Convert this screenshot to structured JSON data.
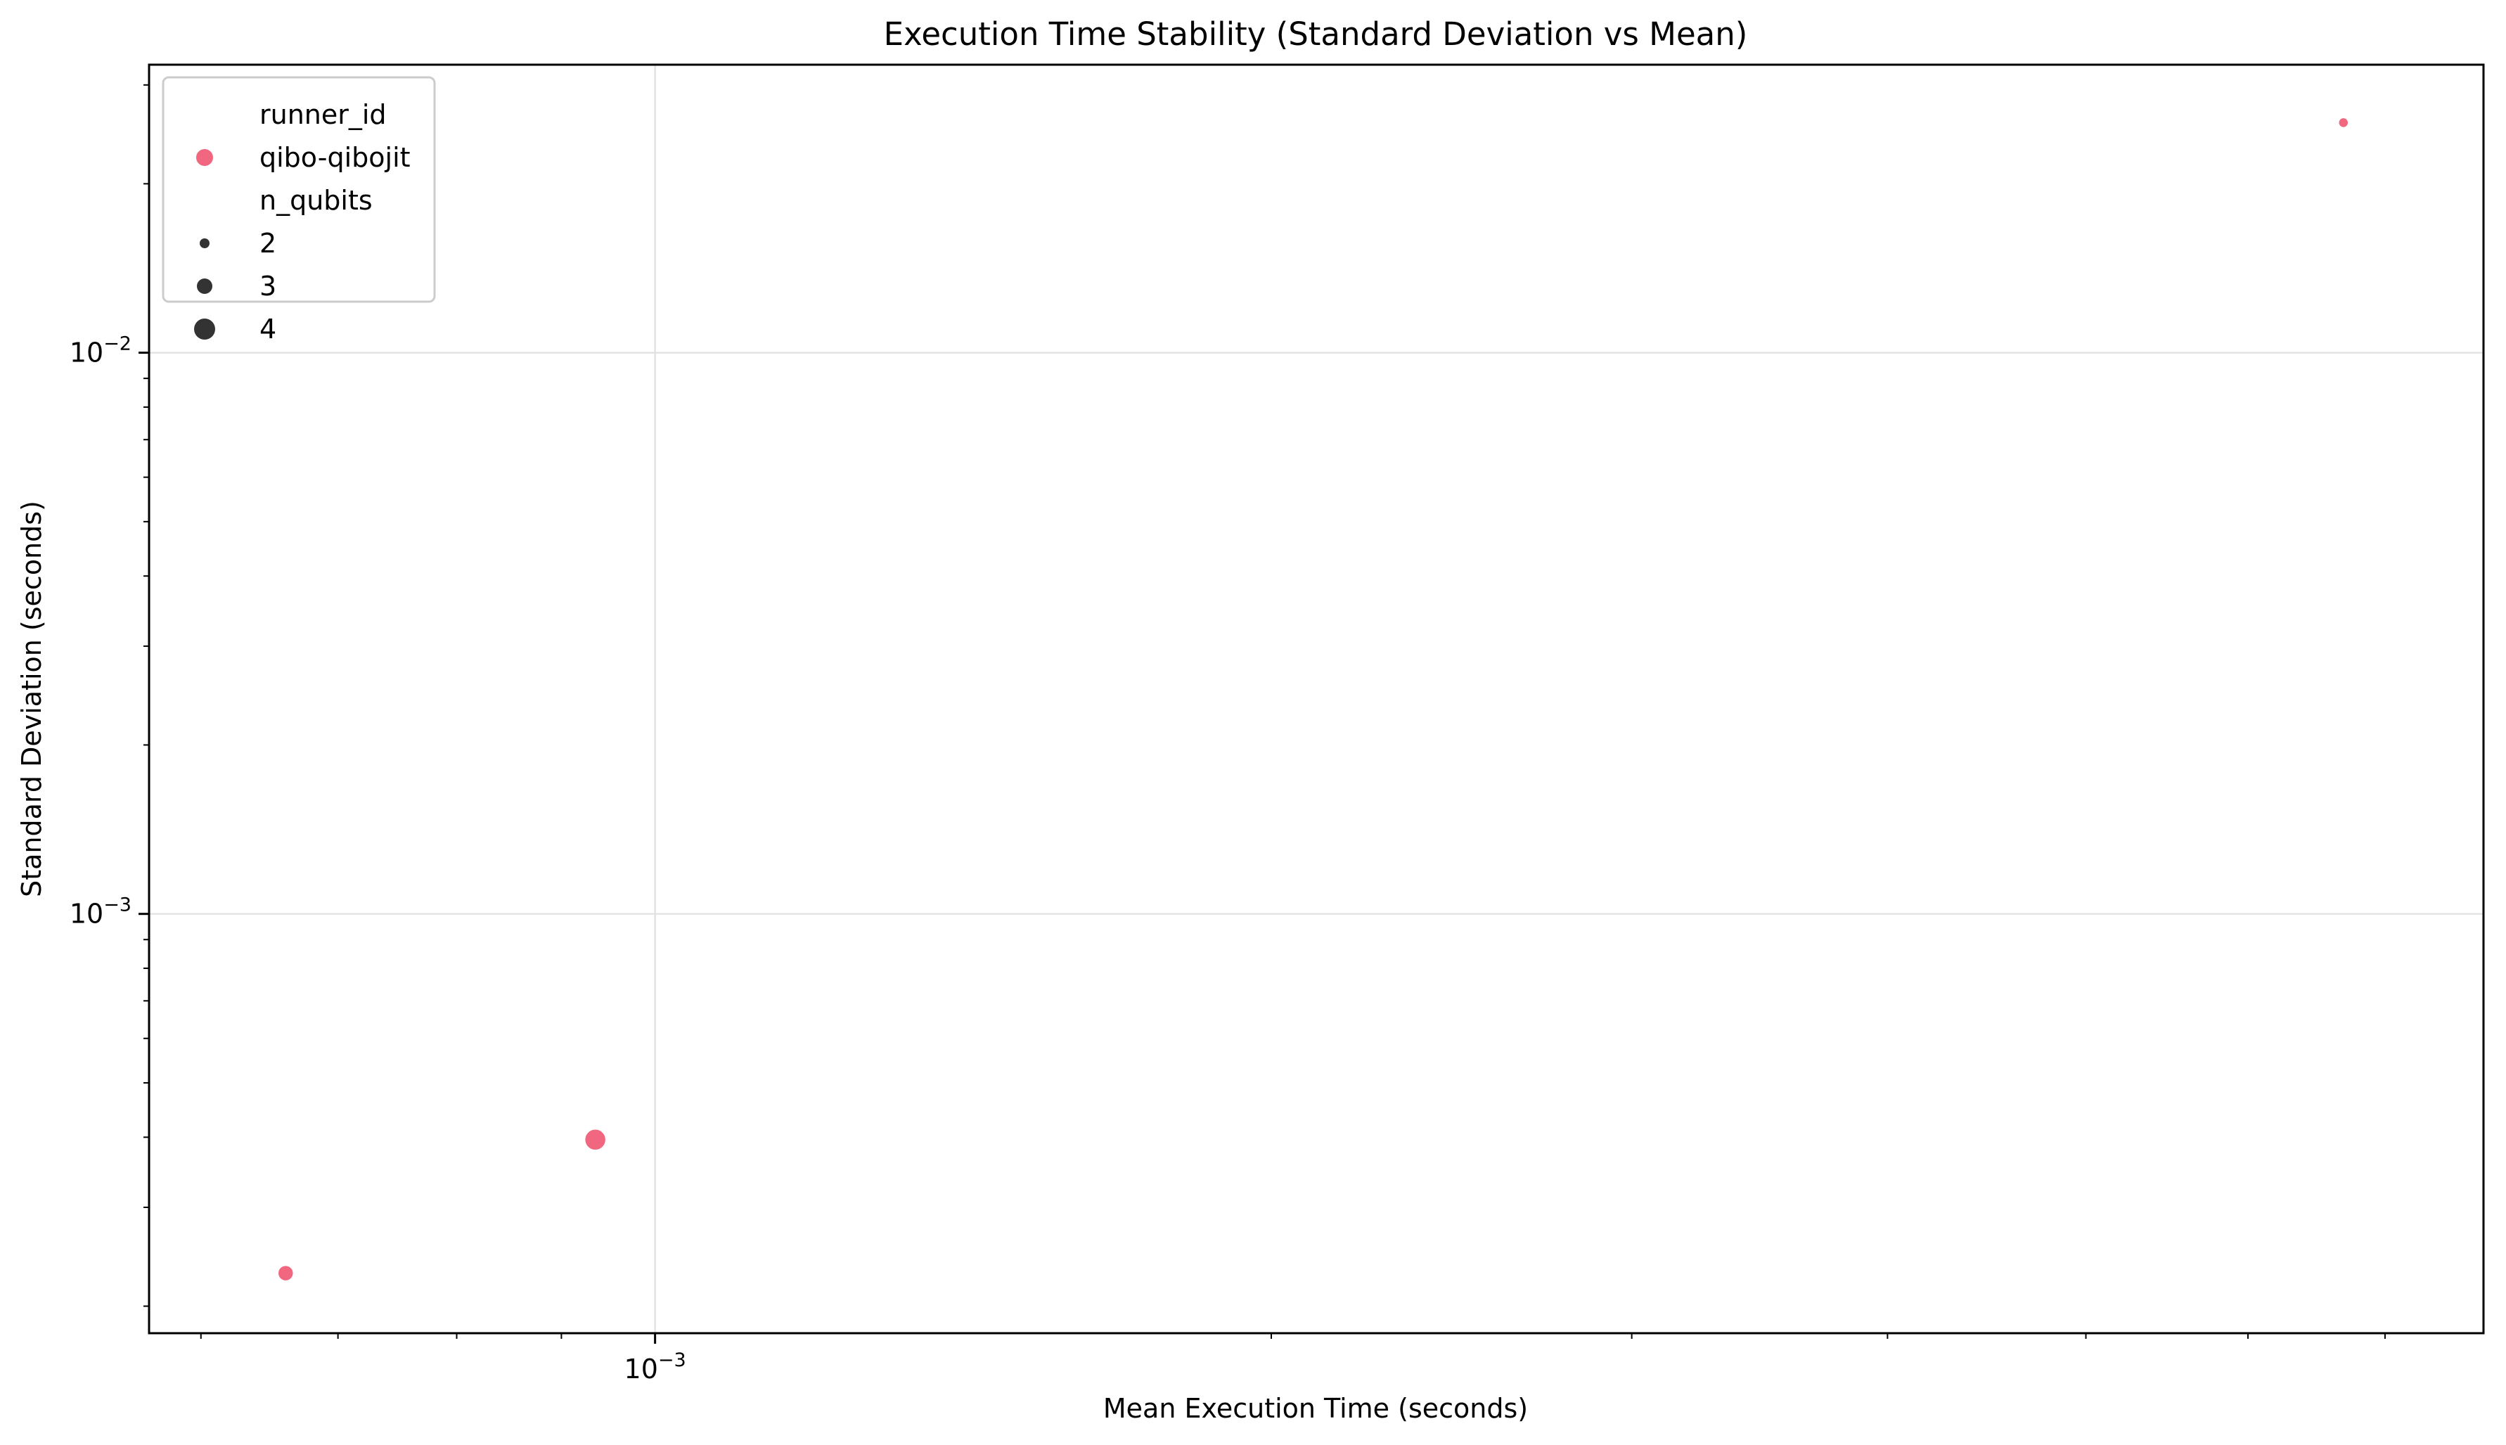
{
  "chart_data": {
    "type": "scatter",
    "title": "Execution Time Stability (Standard Deviation vs Mean)",
    "xlabel": "Mean Execution Time (seconds)",
    "ylabel": "Standard Deviation (seconds)",
    "xscale": "log",
    "yscale": "log",
    "xlim": [
      0.000566,
      0.00782
    ],
    "ylim": [
      0.000179,
      0.0326
    ],
    "x_ticks": [
      {
        "value": 0.001,
        "label": "10−3"
      }
    ],
    "y_ticks": [
      {
        "value": 0.01,
        "label": "10−2"
      },
      {
        "value": 0.001,
        "label": "10−3"
      }
    ],
    "grid": true,
    "legend": {
      "position": "top-left",
      "hue_title": "runner_id",
      "hue_entries": [
        {
          "label": "qibo-qibojit",
          "color": "#f0677f"
        }
      ],
      "size_title": "n_qubits",
      "size_entries": [
        {
          "label": "2",
          "n_qubits": 2
        },
        {
          "label": "3",
          "n_qubits": 3
        },
        {
          "label": "4",
          "n_qubits": 4
        }
      ],
      "size_marker_color": "#333333"
    },
    "series": [
      {
        "name": "qibo-qibojit",
        "color": "#f0677f",
        "points": [
          {
            "x": 0.00066,
            "y": 0.000229,
            "n_qubits": 3
          },
          {
            "x": 0.000935,
            "y": 0.000396,
            "n_qubits": 4
          },
          {
            "x": 0.00668,
            "y": 0.0257,
            "n_qubits": 2
          }
        ]
      }
    ]
  }
}
